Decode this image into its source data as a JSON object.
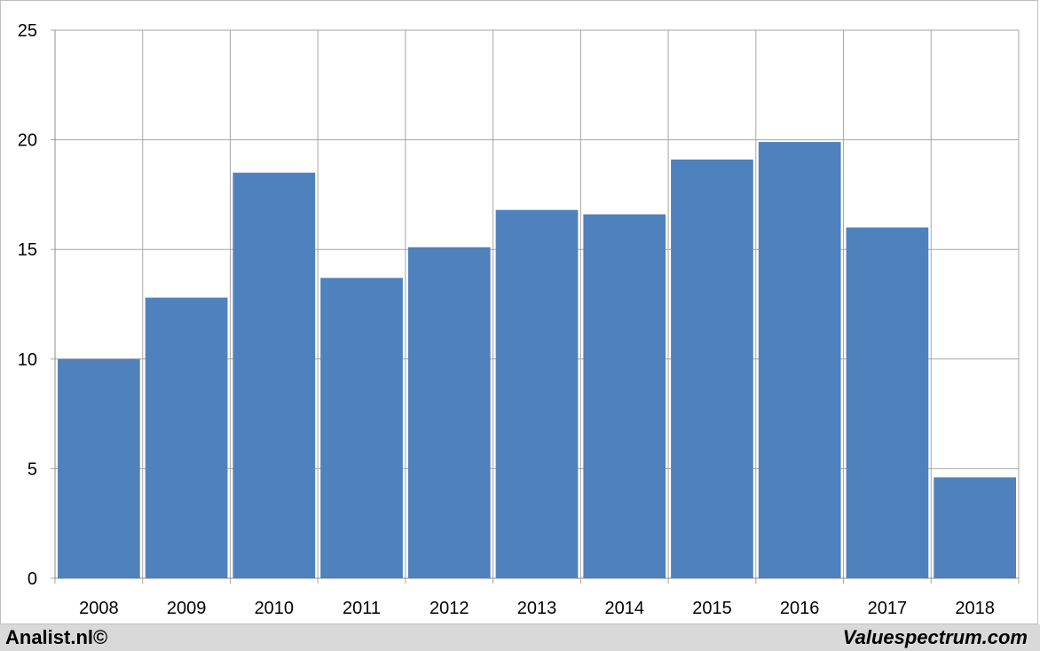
{
  "chart_data": {
    "type": "bar",
    "categories": [
      "2008",
      "2009",
      "2010",
      "2011",
      "2012",
      "2013",
      "2014",
      "2015",
      "2016",
      "2017",
      "2018"
    ],
    "values": [
      10.0,
      12.8,
      18.5,
      13.7,
      15.1,
      16.8,
      16.6,
      19.1,
      19.9,
      16.0,
      4.6
    ],
    "ylim": [
      0,
      25
    ],
    "yticks": [
      0,
      5,
      10,
      15,
      20,
      25
    ],
    "grid": true,
    "legend": "none",
    "bar_color": "#4f81bd",
    "title": "",
    "xlabel": "",
    "ylabel": ""
  },
  "footer": {
    "left_text": "Analist.nl©",
    "right_text": "Valuespectrum.com"
  }
}
